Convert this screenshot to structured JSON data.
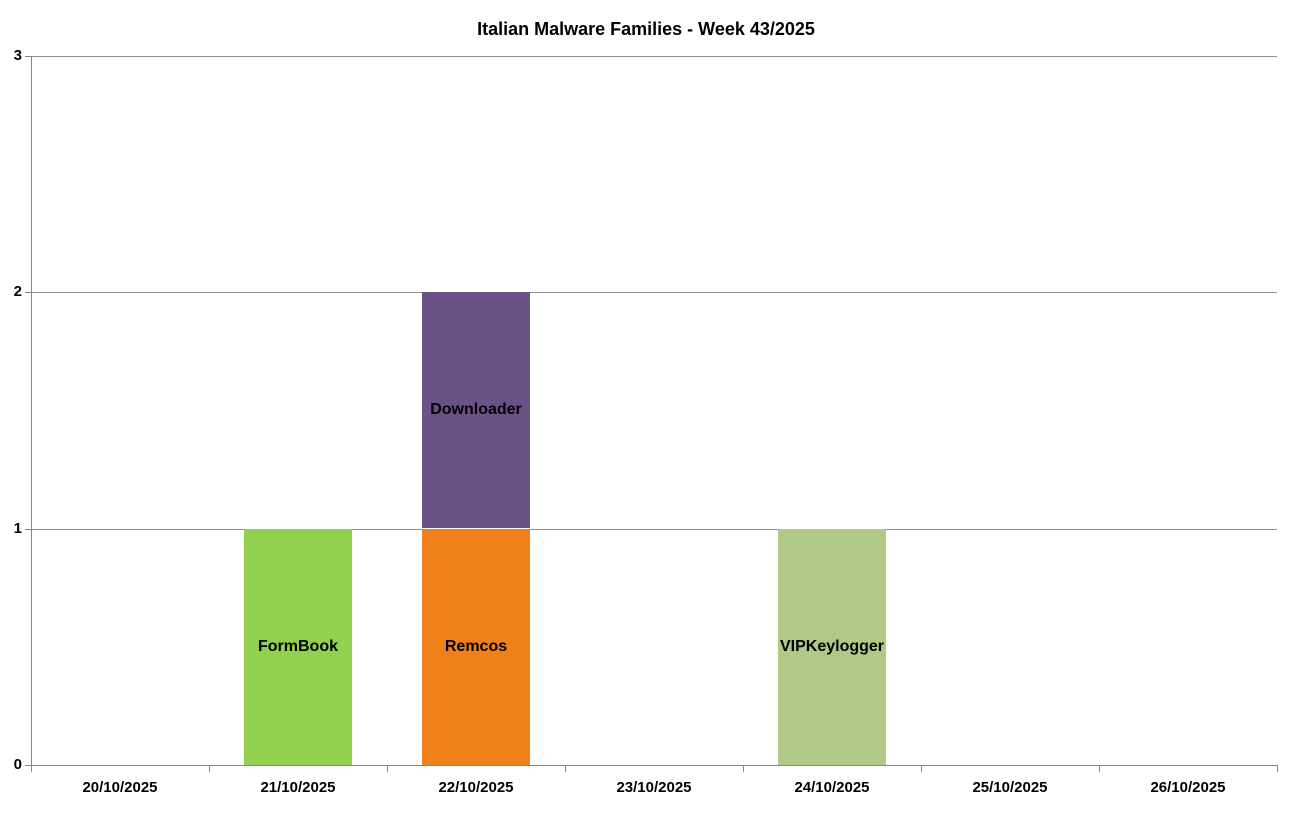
{
  "chart_data": {
    "type": "bar",
    "subtype": "stacked-column",
    "title": "Italian Malware Families - Week 43/2025",
    "categories": [
      "20/10/2025",
      "21/10/2025",
      "22/10/2025",
      "23/10/2025",
      "24/10/2025",
      "25/10/2025",
      "26/10/2025"
    ],
    "series": [
      {
        "name": "FormBook",
        "color": "#92d050",
        "values": [
          0,
          1,
          0,
          0,
          0,
          0,
          0
        ]
      },
      {
        "name": "Remcos",
        "color": "#f0801a",
        "values": [
          0,
          0,
          1,
          0,
          0,
          0,
          0
        ]
      },
      {
        "name": "Downloader",
        "color": "#6a5287",
        "values": [
          0,
          0,
          1,
          0,
          0,
          0,
          0
        ]
      },
      {
        "name": "VIPKeylogger",
        "color": "#aeca86",
        "values": [
          0,
          0,
          0,
          0,
          1,
          0,
          0
        ]
      }
    ],
    "xlabel": "",
    "ylabel": "",
    "ylim": [
      0,
      3
    ],
    "yticks": [
      0,
      1,
      2,
      3
    ],
    "grid": true,
    "legend_position": "none",
    "bar_label_style": "series name centered inside segment",
    "colors": {
      "gridline": "#919191",
      "axis": "#868686",
      "text": "#000000",
      "background": "#ffffff"
    }
  }
}
